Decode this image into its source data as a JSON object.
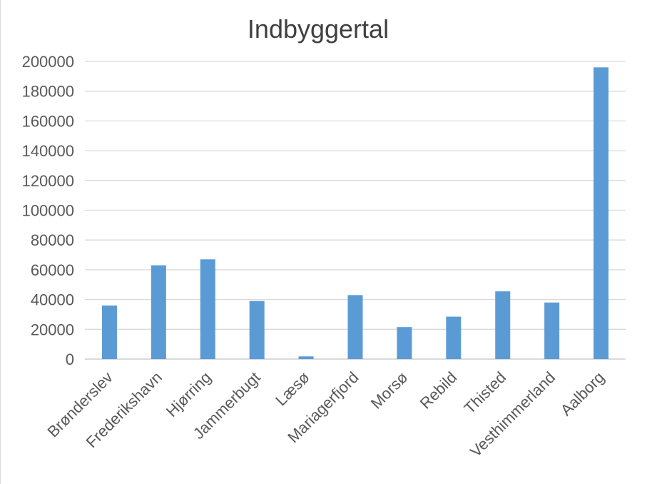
{
  "chart_data": {
    "type": "bar",
    "title": "Indbyggertal",
    "xlabel": "",
    "ylabel": "",
    "categories": [
      "Brønderslev",
      "Frederikshavn",
      "Hjørring",
      "Jammerbugt",
      "Læsø",
      "Mariagerfjord",
      "Morsø",
      "Rebild",
      "Thisted",
      "Vesthimmerland",
      "Aalborg"
    ],
    "series": [
      {
        "values": [
          36000,
          63000,
          67000,
          39000,
          1800,
          43000,
          21500,
          28500,
          45500,
          38000,
          196000
        ]
      }
    ],
    "ylim": [
      0,
      200000
    ],
    "yticks": [
      "0",
      "20000",
      "40000",
      "60000",
      "80000",
      "100000",
      "120000",
      "140000",
      "160000",
      "180000",
      "200000"
    ],
    "grid": true,
    "legend": "none",
    "bar_color": "#5b9bd5",
    "grid_color": "#d9d9d9",
    "text_color": "#595959"
  }
}
